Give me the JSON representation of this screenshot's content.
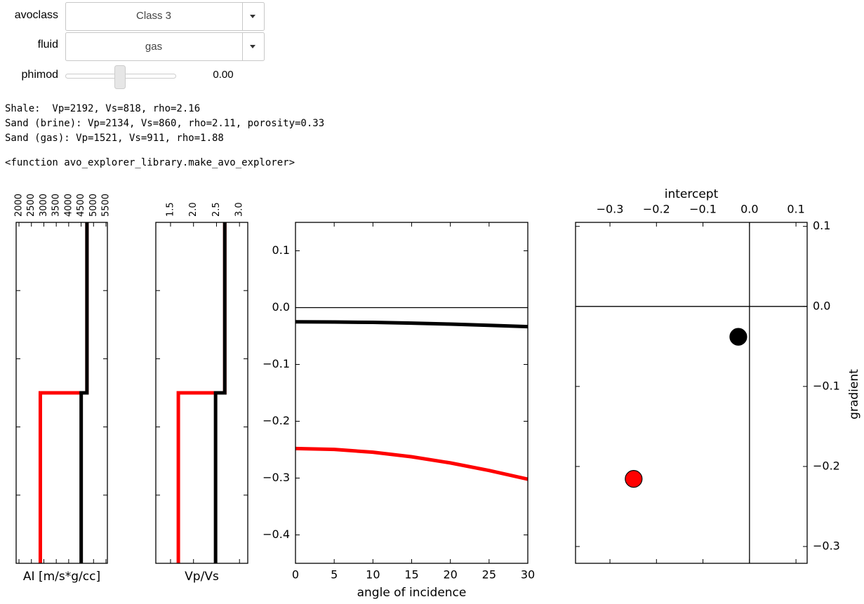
{
  "controls": {
    "avoclass": {
      "label": "avoclass",
      "value": "Class 3"
    },
    "fluid": {
      "label": "fluid",
      "value": "gas"
    },
    "phimod": {
      "label": "phimod",
      "value": "0.00"
    }
  },
  "output": {
    "lines": [
      "Shale:  Vp=2192, Vs=818, rho=2.16",
      "Sand (brine): Vp=2134, Vs=860, rho=2.11, porosity=0.33",
      "Sand (gas): Vp=1521, Vs=911, rho=1.88"
    ],
    "function_repr": "<function avo_explorer_library.make_avo_explorer>"
  },
  "chart_data": [
    {
      "type": "line",
      "xlabel": "AI [m/s*g/cc]",
      "xaxis": "top",
      "xtick_rotation": 90,
      "xlim": [
        1886,
        5557
      ],
      "xticks": [
        2000,
        2500,
        3000,
        3500,
        4000,
        4500,
        5000,
        5500
      ],
      "ylim": [
        0,
        100
      ],
      "y_inverted": true,
      "series": [
        {
          "color": "#ff0000",
          "values": [
            4735,
            4735,
            2859,
            2859
          ],
          "depth": [
            0,
            50,
            50,
            100
          ]
        },
        {
          "color": "#000000",
          "values": [
            4735,
            4735,
            4503,
            4503
          ],
          "depth": [
            0,
            50,
            50,
            100
          ]
        }
      ]
    },
    {
      "type": "line",
      "xlabel": "Vp/Vs",
      "xaxis": "top",
      "xtick_rotation": 90,
      "xlim": [
        1.18,
        3.18
      ],
      "xticks": [
        1.5,
        {
          "value": 2,
          "label": "2.0"
        },
        2.5,
        {
          "value": 3,
          "label": "3.0"
        }
      ],
      "ylim": [
        0,
        100
      ],
      "y_inverted": true,
      "series": [
        {
          "color": "#ff0000",
          "values": [
            2.68,
            2.68,
            1.67,
            1.67
          ],
          "depth": [
            0,
            50,
            50,
            100
          ]
        },
        {
          "color": "#000000",
          "values": [
            2.68,
            2.68,
            2.48,
            2.48
          ],
          "depth": [
            0,
            50,
            50,
            100
          ]
        }
      ]
    },
    {
      "type": "line",
      "xlabel": "angle of incidence",
      "xaxis": "bottom",
      "yaxis": "left",
      "xlim": [
        0,
        30
      ],
      "xticks": [
        0,
        5,
        10,
        15,
        20,
        25,
        30
      ],
      "ylim": [
        -0.45,
        0.15
      ],
      "yticks": [
        0.1,
        {
          "value": 0,
          "label": "0.0"
        },
        {
          "value": -0.1,
          "label": "−0.1"
        },
        {
          "value": -0.2,
          "label": "−0.2"
        },
        {
          "value": -0.3,
          "label": "−0.3"
        },
        {
          "value": -0.4,
          "label": "−0.4"
        }
      ],
      "hline": 0,
      "x": [
        0,
        5,
        10,
        15,
        20,
        25,
        30
      ],
      "series": [
        {
          "color": "#000000",
          "values": [
            -0.025,
            -0.0253,
            -0.026,
            -0.0273,
            -0.029,
            -0.0311,
            -0.0335
          ]
        },
        {
          "color": "#ff0000",
          "values": [
            -0.248,
            -0.2496,
            -0.2545,
            -0.2625,
            -0.2733,
            -0.2867,
            -0.302
          ]
        }
      ]
    },
    {
      "type": "scatter",
      "xlabel": "intercept",
      "ylabel": "gradient",
      "xaxis": "top",
      "yaxis": "right",
      "xlim": [
        -0.374,
        0.124
      ],
      "xticks": [
        {
          "value": -0.3,
          "label": "−0.3"
        },
        {
          "value": -0.2,
          "label": "−0.2"
        },
        {
          "value": -0.1,
          "label": "−0.1"
        },
        {
          "value": 0,
          "label": "0.0"
        },
        0.1
      ],
      "ylim": [
        -0.321,
        0.105
      ],
      "yticks": [
        0.1,
        {
          "value": 0,
          "label": "0.0"
        },
        {
          "value": -0.1,
          "label": "−0.1"
        },
        {
          "value": -0.2,
          "label": "−0.2"
        },
        {
          "value": -0.3,
          "label": "−0.3"
        }
      ],
      "hline": 0,
      "vline": 0,
      "series": [
        {
          "color": "#000000",
          "x": [
            -0.024
          ],
          "values": [
            -0.038
          ]
        },
        {
          "color": "#ff0000",
          "x": [
            -0.249
          ],
          "values": [
            -0.2155
          ]
        }
      ]
    }
  ]
}
